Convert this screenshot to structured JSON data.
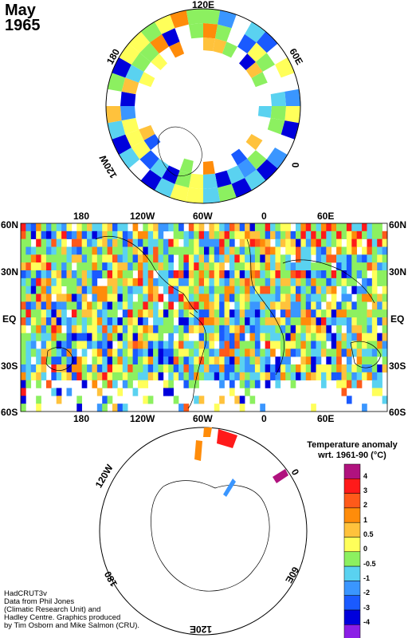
{
  "header": {
    "month": "May",
    "year": "1965"
  },
  "north_polar_labels": {
    "top": "120E",
    "right": "60E",
    "right_lower": "0",
    "left": "180",
    "left_lower": "120W"
  },
  "south_polar_labels": {
    "top": "0",
    "left": "120W",
    "right_lower": "60E",
    "left_lower": "180",
    "bottom": "120E"
  },
  "main_map": {
    "lon_labels": [
      "180",
      "120W",
      "60W",
      "0",
      "60E"
    ],
    "lat_labels": [
      "60N",
      "30N",
      "EQ",
      "30S",
      "60S"
    ]
  },
  "legend": {
    "title_line1": "Temperature anomaly",
    "title_line2": "wrt. 1961-90  (°C)",
    "labels": [
      "4",
      "3",
      "2",
      "1",
      "0.5",
      "0",
      "-0.5",
      "-1",
      "-2",
      "-3",
      "-4"
    ],
    "colors": [
      "#b0127e",
      "#ff1a1a",
      "#ff5a1a",
      "#ff8c0a",
      "#ffc23c",
      "#ffff5a",
      "#8cf060",
      "#5ad2f0",
      "#3a96ff",
      "#1a5aff",
      "#0000dc",
      "#8c1ee6"
    ]
  },
  "credits": [
    "HadCRUT3v",
    "Data from Phil Jones",
    "(Climatic Research Unit) and",
    "Hadley Centre.  Graphics produced",
    "by Tim Osborn and Mike Salmon (CRU)."
  ]
}
